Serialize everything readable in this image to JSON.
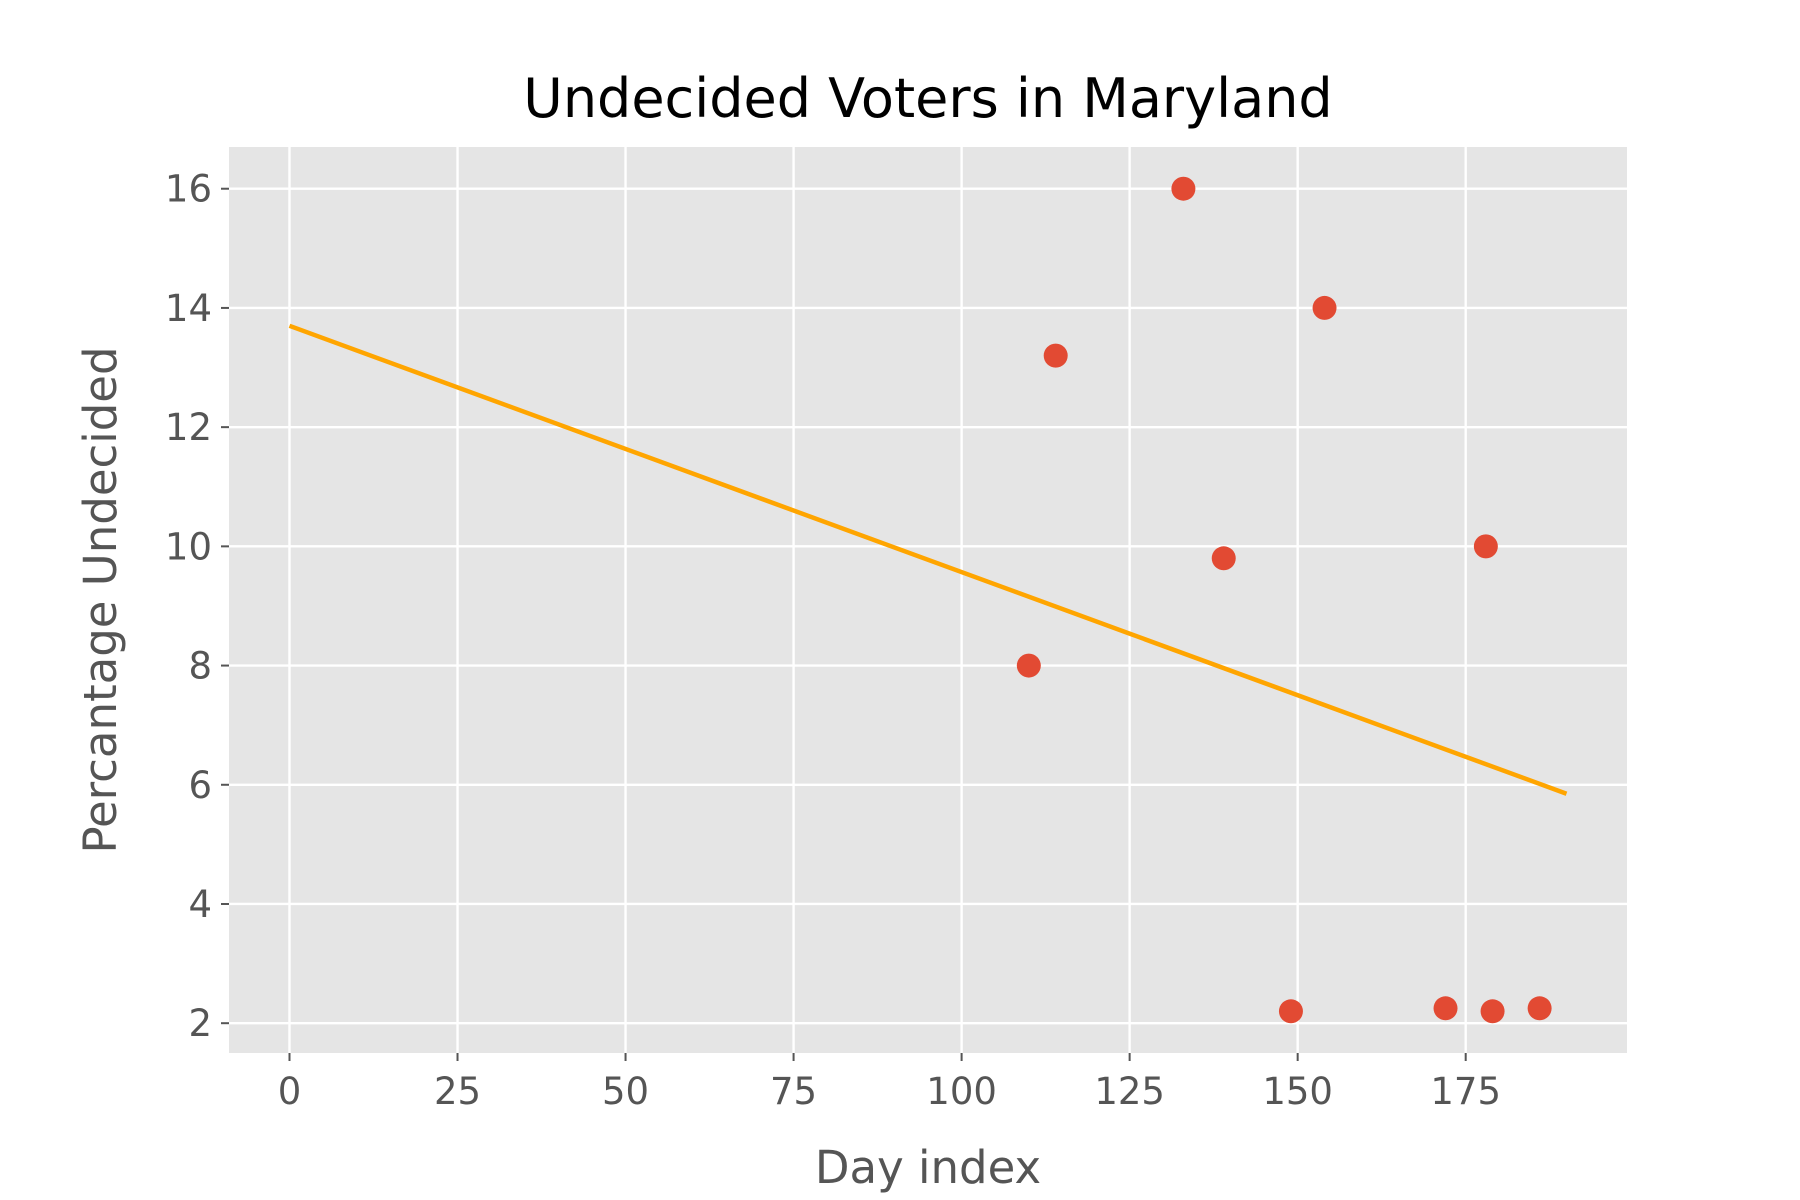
{
  "chart_data": {
    "type": "scatter",
    "title": "Undecided Voters in Maryland",
    "xlabel": "Day index",
    "ylabel": "Percantage Undecided",
    "xlim": [
      -9,
      199
    ],
    "ylim": [
      1.5,
      16.7
    ],
    "xticks": [
      0,
      25,
      50,
      75,
      100,
      125,
      150,
      175
    ],
    "yticks": [
      2,
      4,
      6,
      8,
      10,
      12,
      14,
      16
    ],
    "grid": true,
    "style": "ggplot",
    "points": [
      {
        "x": 110,
        "y": 8.0
      },
      {
        "x": 114,
        "y": 13.2
      },
      {
        "x": 133,
        "y": 16.0
      },
      {
        "x": 139,
        "y": 9.8
      },
      {
        "x": 149,
        "y": 2.2
      },
      {
        "x": 154,
        "y": 14.0
      },
      {
        "x": 172,
        "y": 2.25
      },
      {
        "x": 178,
        "y": 10.0
      },
      {
        "x": 179,
        "y": 2.2
      },
      {
        "x": 186,
        "y": 2.25
      }
    ],
    "trend_line": {
      "x": [
        0,
        190
      ],
      "y": [
        13.7,
        5.85
      ]
    },
    "colors": {
      "points": "#e24a33",
      "trend_line": "#ffa500",
      "plot_background": "#e5e5e5",
      "grid": "#ffffff"
    }
  }
}
